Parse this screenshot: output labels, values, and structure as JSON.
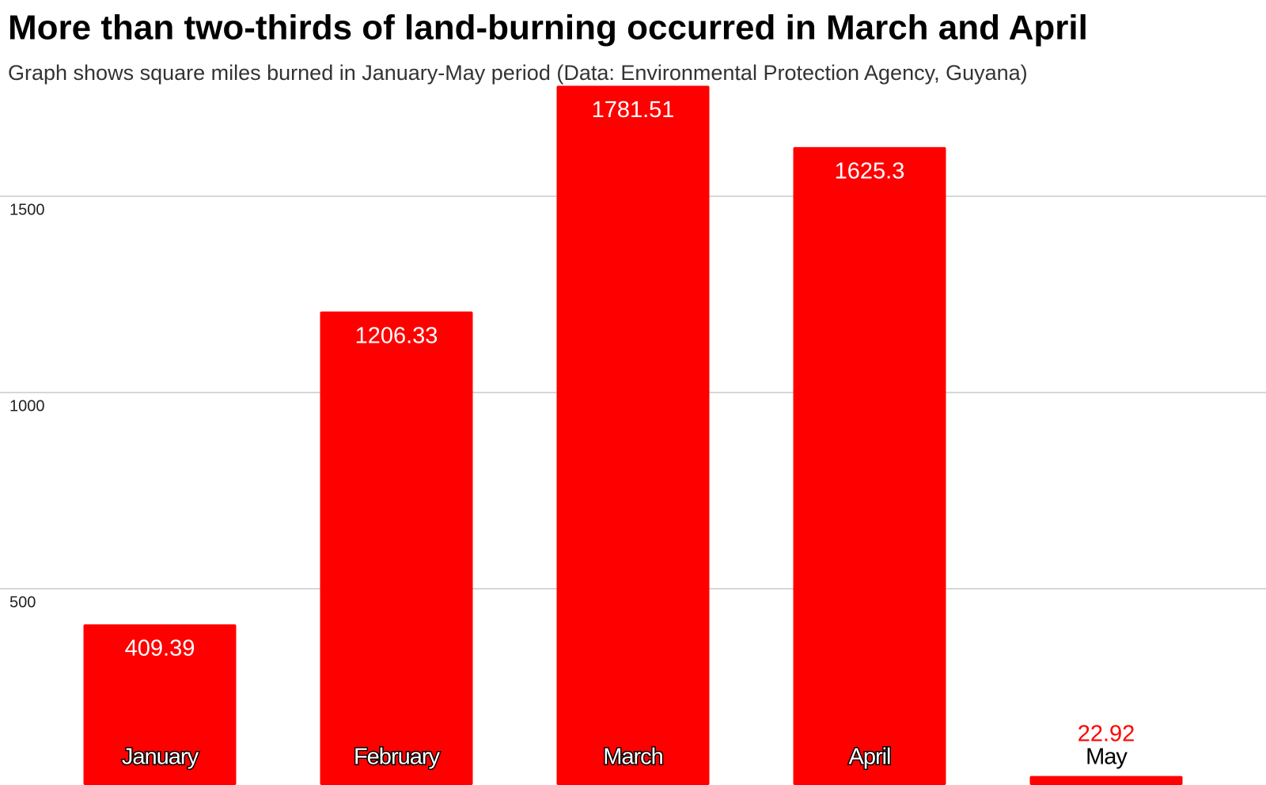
{
  "chart_data": {
    "type": "bar",
    "title": "More than two-thirds of land-burning occurred in March and April",
    "subtitle": "Graph shows square miles burned in January-May period (Data: Environmental Protection Agency, Guyana)",
    "categories": [
      "January",
      "February",
      "March",
      "April",
      "May"
    ],
    "values": [
      409.39,
      1206.33,
      1781.51,
      1625.3,
      22.92
    ],
    "color": "#ff0000",
    "ylim": [
      0,
      2000
    ],
    "yticks": [
      500,
      1000,
      1500
    ],
    "grid": true
  }
}
